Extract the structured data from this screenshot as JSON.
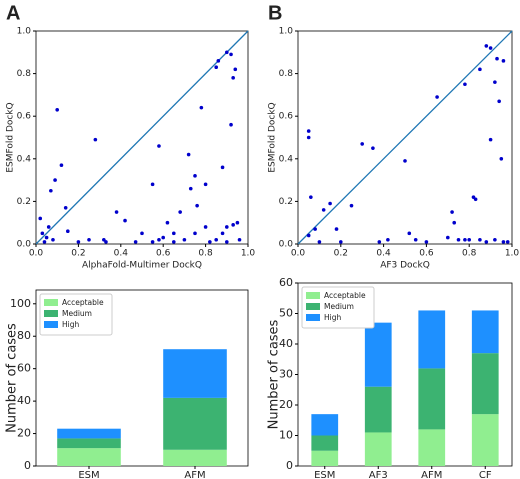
{
  "chart_data": [
    {
      "type": "scatter",
      "panel": "A",
      "xlabel": "AlphaFold-Multimer DockQ",
      "ylabel": "ESMFold DockQ",
      "color": "#0000cc",
      "line_color": "#1f77b4",
      "xlim": [
        0,
        1
      ],
      "ylim": [
        0,
        1
      ],
      "xticks": [
        {
          "value": 0,
          "label": "0.0"
        },
        0.2,
        0.4,
        0.6,
        0.8,
        {
          "value": 1,
          "label": "1.0"
        }
      ],
      "yticks": [
        {
          "value": 0,
          "label": "0.0"
        },
        0.2,
        0.4,
        0.6,
        0.8,
        {
          "value": 1,
          "label": "1.0"
        }
      ],
      "x": [
        0.02,
        0.03,
        0.05,
        0.06,
        0.08,
        0.1,
        0.12,
        0.07,
        0.09,
        0.14,
        0.15,
        0.2,
        0.28,
        0.32,
        0.33,
        0.38,
        0.42,
        0.47,
        0.5,
        0.55,
        0.58,
        0.6,
        0.62,
        0.65,
        0.68,
        0.72,
        0.73,
        0.75,
        0.76,
        0.78,
        0.8,
        0.82,
        0.85,
        0.86,
        0.88,
        0.9,
        0.92,
        0.93,
        0.94,
        0.92,
        0.95,
        0.96,
        0.9,
        0.85,
        0.7,
        0.58,
        0.25,
        0.04,
        0.88,
        0.8,
        0.75,
        0.55,
        0.65,
        0.9,
        0.93
      ],
      "values": [
        0.12,
        0.05,
        0.03,
        0.08,
        0.02,
        0.63,
        0.37,
        0.25,
        0.3,
        0.17,
        0.06,
        0.01,
        0.49,
        0.02,
        0.01,
        0.15,
        0.11,
        0.01,
        0.05,
        0.28,
        0.46,
        0.03,
        0.1,
        0.01,
        0.15,
        0.42,
        0.26,
        0.32,
        0.18,
        0.64,
        0.28,
        0.01,
        0.83,
        0.86,
        0.05,
        0.9,
        0.89,
        0.78,
        0.82,
        0.56,
        0.1,
        0.02,
        0.01,
        0.02,
        0.02,
        0.02,
        0.02,
        0.01,
        0.36,
        0.08,
        0.05,
        0.01,
        0.05,
        0.08,
        0.09
      ]
    },
    {
      "type": "scatter",
      "panel": "B",
      "xlabel": "AF3 DockQ",
      "ylabel": "ESMFold DockQ",
      "color": "#0000cc",
      "line_color": "#1f77b4",
      "xlim": [
        0,
        1
      ],
      "ylim": [
        0,
        1
      ],
      "xticks": [
        {
          "value": 0,
          "label": "0.0"
        },
        0.2,
        0.4,
        0.6,
        0.8,
        {
          "value": 1,
          "label": "1.0"
        }
      ],
      "yticks": [
        {
          "value": 0,
          "label": "0.0"
        },
        0.2,
        0.4,
        0.6,
        0.8,
        {
          "value": 1,
          "label": "1.0"
        }
      ],
      "x": [
        0.05,
        0.05,
        0.06,
        0.05,
        0.08,
        0.1,
        0.12,
        0.15,
        0.18,
        0.2,
        0.25,
        0.3,
        0.35,
        0.38,
        0.42,
        0.5,
        0.52,
        0.55,
        0.6,
        0.65,
        0.7,
        0.72,
        0.73,
        0.78,
        0.8,
        0.82,
        0.83,
        0.85,
        0.88,
        0.9,
        0.92,
        0.93,
        0.9,
        0.95,
        0.96,
        0.96,
        0.94,
        0.88,
        0.85,
        0.78,
        0.98,
        0.75,
        0.92
      ],
      "values": [
        0.53,
        0.5,
        0.22,
        0.04,
        0.07,
        0.01,
        0.16,
        0.19,
        0.07,
        0.01,
        0.18,
        0.47,
        0.45,
        0.01,
        0.02,
        0.39,
        0.05,
        0.02,
        0.01,
        0.69,
        0.03,
        0.15,
        0.1,
        0.75,
        0.02,
        0.22,
        0.21,
        0.82,
        0.93,
        0.92,
        0.76,
        0.87,
        0.49,
        0.4,
        0.86,
        0.01,
        0.67,
        0.01,
        0.02,
        0.02,
        0.01,
        0.02,
        0.02
      ]
    },
    {
      "type": "bar",
      "ylabel": "Number of cases",
      "categories": [
        "ESM",
        "AFM"
      ],
      "legend": "upper left",
      "ylim": [
        0,
        108.5
      ],
      "yticks": [
        0,
        20,
        40,
        60,
        80,
        100
      ],
      "series": [
        {
          "name": "Acceptable",
          "color": "#90ee90",
          "values": [
            11,
            10
          ]
        },
        {
          "name": "Medium",
          "color": "#3cb371",
          "values": [
            6,
            32
          ]
        },
        {
          "name": "High",
          "color": "#1e90ff",
          "values": [
            6,
            30
          ]
        }
      ]
    },
    {
      "type": "bar",
      "ylabel": "Number of cases",
      "categories": [
        "ESM",
        "AF3",
        "AFM",
        "CF"
      ],
      "legend": "upper left",
      "ylim": [
        0,
        60
      ],
      "yticks": [
        0,
        10,
        20,
        30,
        40,
        50,
        60
      ],
      "series": [
        {
          "name": "Acceptable",
          "color": "#90ee90",
          "values": [
            5,
            11,
            12,
            17
          ]
        },
        {
          "name": "Medium",
          "color": "#3cb371",
          "values": [
            5,
            15,
            20,
            20
          ]
        },
        {
          "name": "High",
          "color": "#1e90ff",
          "values": [
            7,
            21,
            19,
            14
          ]
        }
      ]
    }
  ]
}
